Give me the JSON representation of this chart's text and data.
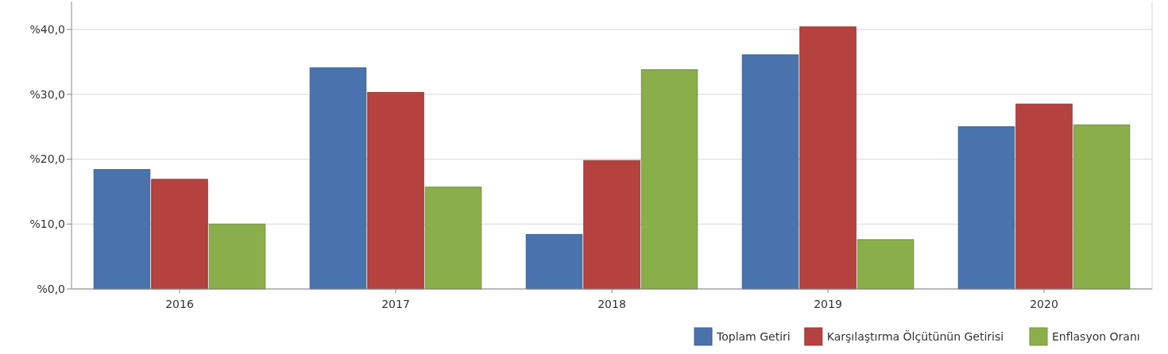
{
  "chart_data": {
    "type": "bar",
    "categories": [
      "2016",
      "2017",
      "2018",
      "2019",
      "2020"
    ],
    "series": [
      {
        "name": "Toplam Getiri",
        "color": "#4a72ad",
        "values": [
          18.4,
          34.1,
          8.4,
          36.1,
          25.0
        ]
      },
      {
        "name": "Karşılaştırma Ölçütünün Getirisi",
        "color": "#b5423f",
        "values": [
          16.9,
          30.3,
          19.8,
          40.4,
          28.5
        ]
      },
      {
        "name": "Enflasyon Oranı",
        "color": "#8aae4a",
        "values": [
          10.0,
          15.7,
          33.8,
          7.6,
          25.3
        ]
      }
    ],
    "ylim": [
      0,
      44.3
    ],
    "yticks": [
      {
        "value": 0,
        "label": "%0,0"
      },
      {
        "value": 10,
        "label": "%10,0"
      },
      {
        "value": 20,
        "label": "%20,0"
      },
      {
        "value": 30,
        "label": "%30,0"
      },
      {
        "value": 40,
        "label": "%40,0"
      }
    ],
    "grid": "y",
    "legend": "bottom right"
  }
}
